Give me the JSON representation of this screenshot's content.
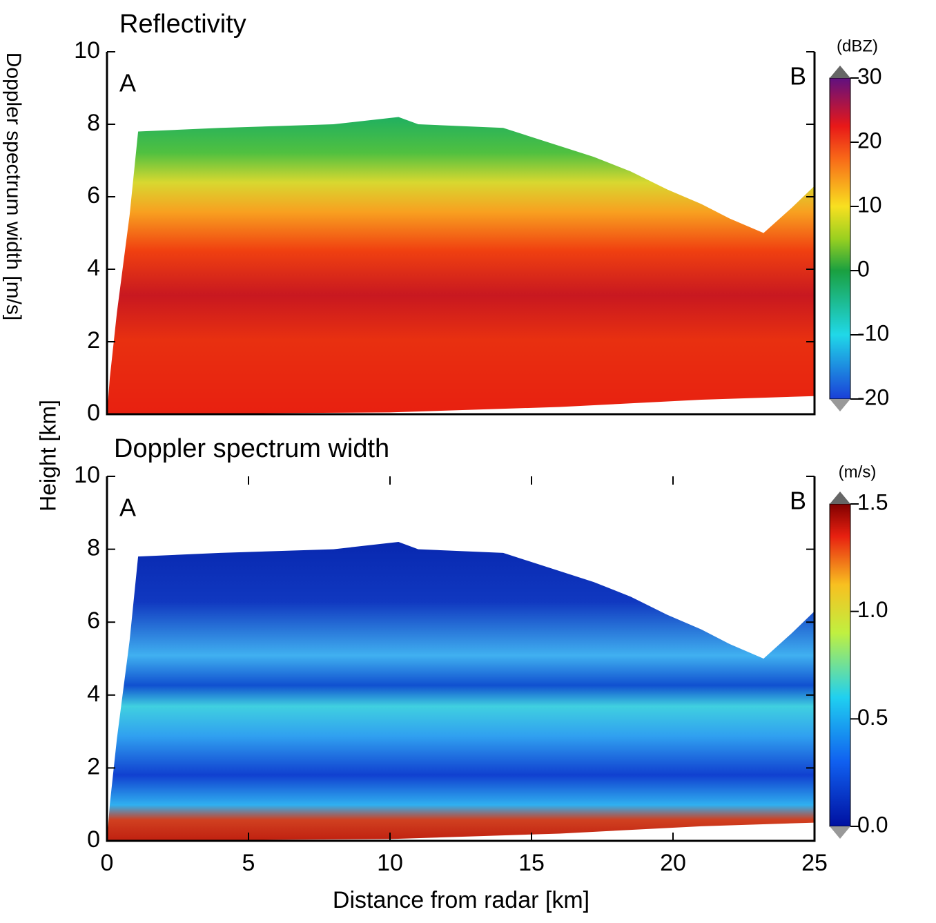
{
  "chart_data": [
    {
      "type": "heatmap",
      "title": "Reflectivity",
      "corner_left": "A",
      "corner_right": "B",
      "xlim": [
        0,
        25
      ],
      "ylim": [
        0,
        10
      ],
      "yticks": [
        0,
        2,
        4,
        6,
        8,
        10
      ],
      "colorbar": {
        "label": "(dBZ)",
        "lim": [
          -20,
          30
        ],
        "ticks": [
          30,
          20,
          10,
          0,
          -10,
          -20
        ]
      }
    },
    {
      "type": "heatmap",
      "title": "Doppler spectrum width",
      "corner_left": "A",
      "corner_right": "B",
      "xlim": [
        0,
        25
      ],
      "ylim": [
        0,
        10
      ],
      "yticks": [
        0,
        2,
        4,
        6,
        8,
        10
      ],
      "xticks": [
        0,
        5,
        10,
        15,
        20,
        25
      ],
      "xlabel": "Distance from radar [km]",
      "ylabel": "Height [km]",
      "side_label": "Doppler spectrum width [m/s]",
      "colorbar": {
        "label": "(m/s)",
        "lim": [
          0,
          1.5
        ],
        "ticks": [
          1.5,
          {
            "value": 1,
            "label": "1.0"
          },
          0.5,
          {
            "value": 0,
            "label": "0.0"
          }
        ]
      }
    }
  ]
}
